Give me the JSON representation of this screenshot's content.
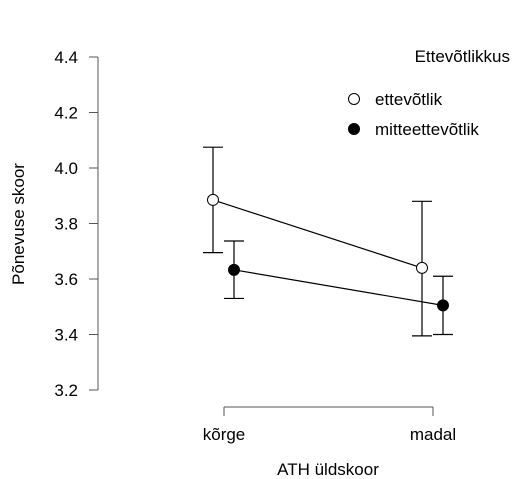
{
  "chart_data": {
    "type": "line",
    "title": "",
    "xlabel": "ATH üldskoor",
    "ylabel": "Põnevuse skoor",
    "categories": [
      "kõrge",
      "madal"
    ],
    "ylim": [
      3.2,
      4.4
    ],
    "yticks": [
      3.2,
      3.4,
      3.6,
      3.8,
      4.0,
      4.2,
      4.4
    ],
    "ytick_labels": [
      "3.2",
      "3.4",
      "3.6",
      "3.8",
      "4.0",
      "4.2",
      "4.4"
    ],
    "legend_title": "Ettevõtlikkus",
    "legend_position": "top-right",
    "grid": false,
    "series": [
      {
        "name": "ettevõtlik",
        "marker": "open-circle",
        "values": [
          3.885,
          3.64
        ],
        "err_low": [
          3.695,
          3.395
        ],
        "err_high": [
          4.075,
          3.88
        ],
        "color": "#ffffff"
      },
      {
        "name": "mitteettevõtlik",
        "marker": "filled-circle",
        "values": [
          3.633,
          3.505
        ],
        "err_low": [
          3.53,
          3.4
        ],
        "err_high": [
          3.737,
          3.61
        ],
        "color": "#000000"
      }
    ]
  }
}
